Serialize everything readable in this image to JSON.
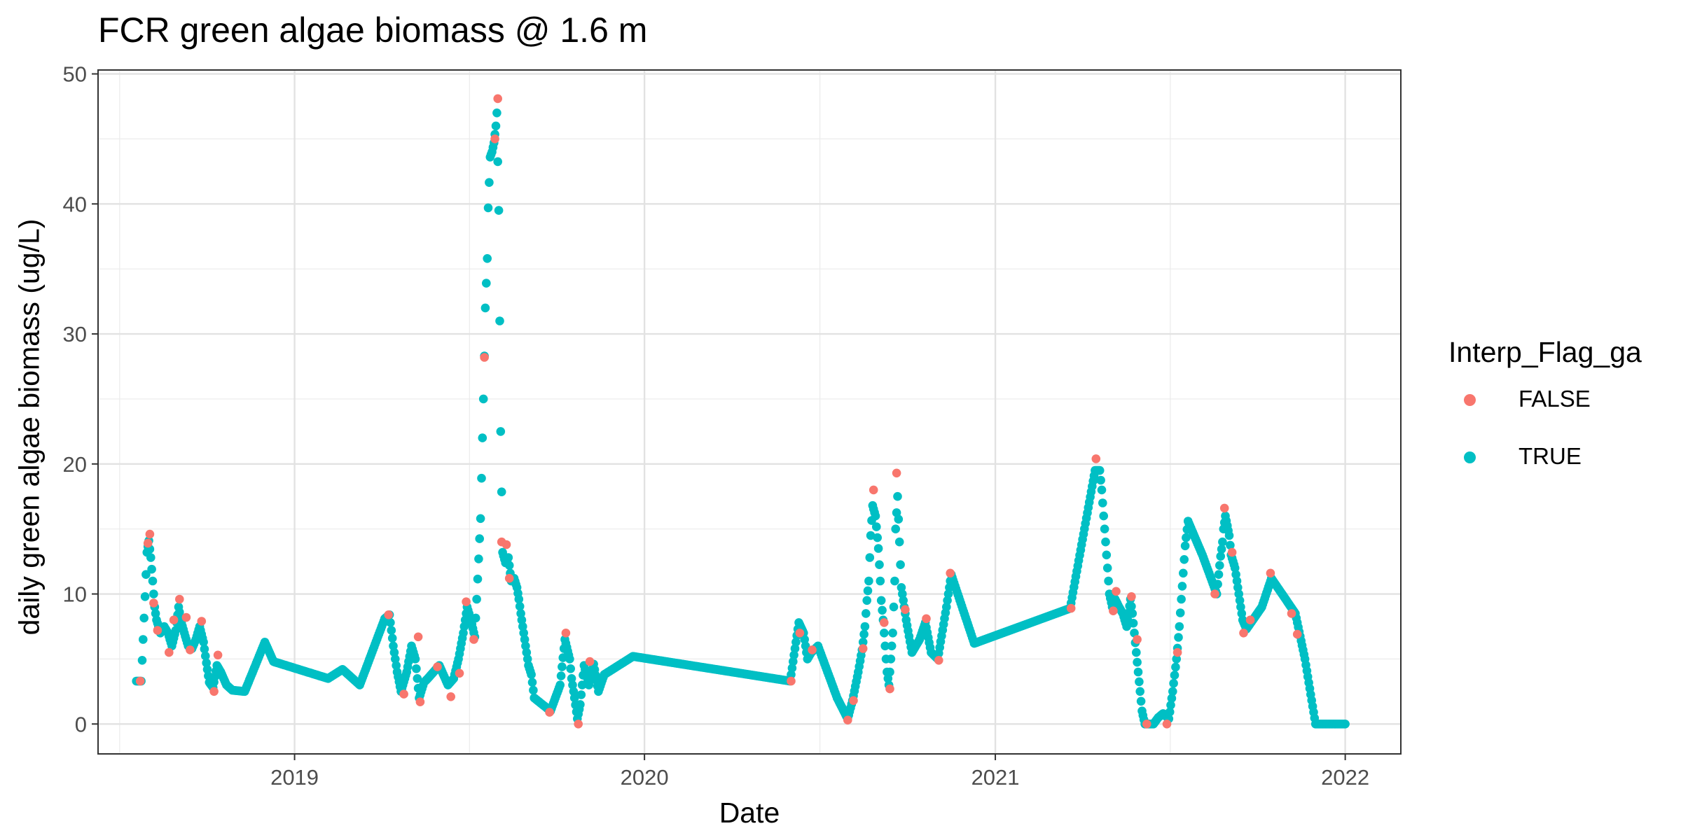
{
  "chart_data": {
    "type": "scatter",
    "title": "FCR green algae biomass @ 1.6 m",
    "xlabel": "Date",
    "ylabel": "daily green algae biomass (ug/L)",
    "xlim": [
      "2018-06-10",
      "2022-02-28"
    ],
    "ylim": [
      -2.3,
      50.3
    ],
    "x_ticks": [
      "2019-01-01",
      "2020-01-01",
      "2021-01-01",
      "2022-01-01"
    ],
    "x_tick_labels": [
      "2019",
      "2020",
      "2021",
      "2022"
    ],
    "y_ticks": [
      0,
      10,
      20,
      30,
      40,
      50
    ],
    "y_tick_labels": [
      "0",
      "10",
      "20",
      "30",
      "40",
      "50"
    ],
    "grid": true,
    "legend": {
      "title": "Interp_Flag_ga",
      "placement": "right",
      "entries": [
        {
          "label": "FALSE",
          "color": "#F8766D"
        },
        {
          "label": "TRUE",
          "color": "#00BFC4"
        }
      ]
    },
    "series": [
      {
        "name": "TRUE",
        "color": "#00BFC4",
        "anchors": [
          [
            "2018-07-20",
            3.3
          ],
          [
            "2018-07-25",
            3.3
          ],
          [
            "2018-07-27",
            6.5
          ],
          [
            "2018-07-29",
            9.8
          ],
          [
            "2018-07-31",
            13.2
          ],
          [
            "2018-08-02",
            14.1
          ],
          [
            "2018-08-04",
            12.8
          ],
          [
            "2018-08-06",
            11.0
          ],
          [
            "2018-08-08",
            9.0
          ],
          [
            "2018-08-10",
            8.0
          ],
          [
            "2018-08-14",
            7.0
          ],
          [
            "2018-08-18",
            7.5
          ],
          [
            "2018-08-22",
            7.0
          ],
          [
            "2018-08-26",
            6.0
          ],
          [
            "2018-08-30",
            7.2
          ],
          [
            "2018-09-02",
            9.0
          ],
          [
            "2018-09-05",
            7.8
          ],
          [
            "2018-09-08",
            7.0
          ],
          [
            "2018-09-12",
            6.0
          ],
          [
            "2018-09-16",
            5.8
          ],
          [
            "2018-09-20",
            6.5
          ],
          [
            "2018-09-24",
            7.5
          ],
          [
            "2018-09-28",
            6.3
          ],
          [
            "2018-10-01",
            4.7
          ],
          [
            "2018-10-04",
            3.2
          ],
          [
            "2018-10-08",
            2.8
          ],
          [
            "2018-10-12",
            4.5
          ],
          [
            "2018-10-16",
            4.0
          ],
          [
            "2018-10-22",
            3.0
          ],
          [
            "2018-10-28",
            2.6
          ],
          [
            "2018-11-10",
            2.5
          ],
          [
            "2018-12-01",
            6.3
          ],
          [
            "2018-12-10",
            4.8
          ],
          [
            "2019-02-05",
            3.5
          ],
          [
            "2019-02-20",
            4.2
          ],
          [
            "2019-03-10",
            3.0
          ],
          [
            "2019-04-05",
            8.1
          ],
          [
            "2019-04-10",
            8.4
          ],
          [
            "2019-04-14",
            6.0
          ],
          [
            "2019-04-18",
            4.0
          ],
          [
            "2019-04-22",
            2.5
          ],
          [
            "2019-04-28",
            4.0
          ],
          [
            "2019-05-03",
            6.0
          ],
          [
            "2019-05-07",
            5.0
          ],
          [
            "2019-05-11",
            2.0
          ],
          [
            "2019-05-16",
            3.2
          ],
          [
            "2019-05-20",
            3.5
          ],
          [
            "2019-06-01",
            4.5
          ],
          [
            "2019-06-10",
            3.0
          ],
          [
            "2019-06-16",
            3.5
          ],
          [
            "2019-06-21",
            5.0
          ],
          [
            "2019-06-26",
            7.0
          ],
          [
            "2019-06-30",
            9.0
          ],
          [
            "2019-07-04",
            8.0
          ],
          [
            "2019-07-08",
            6.7
          ],
          [
            "2019-07-10",
            9.6
          ],
          [
            "2019-07-12",
            12.7
          ],
          [
            "2019-07-14",
            15.8
          ],
          [
            "2019-07-15",
            18.9
          ],
          [
            "2019-07-16",
            22.0
          ],
          [
            "2019-07-17",
            25.0
          ],
          [
            "2019-07-18",
            28.3
          ],
          [
            "2019-07-19",
            32.0
          ],
          [
            "2019-07-21",
            35.8
          ],
          [
            "2019-07-22",
            39.7
          ],
          [
            "2019-07-24",
            43.6
          ],
          [
            "2019-07-26",
            44.0
          ],
          [
            "2019-07-28",
            44.7
          ],
          [
            "2019-07-30",
            46.0
          ],
          [
            "2019-07-31",
            47.0
          ],
          [
            "2019-08-02",
            39.5
          ],
          [
            "2019-08-03",
            31.0
          ],
          [
            "2019-08-04",
            22.5
          ],
          [
            "2019-08-06",
            13.2
          ],
          [
            "2019-08-09",
            12.4
          ],
          [
            "2019-08-12",
            12.8
          ],
          [
            "2019-08-15",
            11.0
          ],
          [
            "2019-08-18",
            11.2
          ],
          [
            "2019-08-21",
            10.5
          ],
          [
            "2019-08-23",
            9.6
          ],
          [
            "2019-08-25",
            8.5
          ],
          [
            "2019-08-27",
            7.5
          ],
          [
            "2019-08-29",
            6.5
          ],
          [
            "2019-08-31",
            5.5
          ],
          [
            "2019-09-02",
            4.5
          ],
          [
            "2019-09-05",
            3.8
          ],
          [
            "2019-09-08",
            2.0
          ],
          [
            "2019-09-25",
            1.0
          ],
          [
            "2019-10-05",
            3.0
          ],
          [
            "2019-10-10",
            6.5
          ],
          [
            "2019-10-15",
            5.0
          ],
          [
            "2019-10-17",
            3.5
          ],
          [
            "2019-10-20",
            2.0
          ],
          [
            "2019-10-23",
            0.4
          ],
          [
            "2019-10-26",
            1.5
          ],
          [
            "2019-10-30",
            4.5
          ],
          [
            "2019-11-04",
            3.0
          ],
          [
            "2019-11-09",
            4.6
          ],
          [
            "2019-11-14",
            2.5
          ],
          [
            "2019-11-20",
            3.8
          ],
          [
            "2019-12-20",
            5.2
          ],
          [
            "2020-06-01",
            3.3
          ],
          [
            "2020-06-10",
            7.8
          ],
          [
            "2020-06-15",
            7.0
          ],
          [
            "2020-06-19",
            5.0
          ],
          [
            "2020-06-23",
            5.5
          ],
          [
            "2020-06-30",
            6.0
          ],
          [
            "2020-07-20",
            2.0
          ],
          [
            "2020-07-31",
            0.4
          ],
          [
            "2020-08-05",
            1.8
          ],
          [
            "2020-08-11",
            4.0
          ],
          [
            "2020-08-15",
            5.7
          ],
          [
            "2020-08-18",
            7.5
          ],
          [
            "2020-08-20",
            9.5
          ],
          [
            "2020-08-22",
            11.0
          ],
          [
            "2020-08-23",
            12.8
          ],
          [
            "2020-08-24",
            14.5
          ],
          [
            "2020-08-26",
            16.8
          ],
          [
            "2020-08-29",
            16.0
          ],
          [
            "2020-09-01",
            13.5
          ],
          [
            "2020-09-03",
            11.0
          ],
          [
            "2020-09-04",
            9.5
          ],
          [
            "2020-09-06",
            8.0
          ],
          [
            "2020-09-08",
            6.0
          ],
          [
            "2020-09-10",
            4.0
          ],
          [
            "2020-09-12",
            3.0
          ],
          [
            "2020-09-14",
            5.0
          ],
          [
            "2020-09-16",
            7.0
          ],
          [
            "2020-09-18",
            11.0
          ],
          [
            "2020-09-19",
            15.0
          ],
          [
            "2020-09-21",
            17.5
          ],
          [
            "2020-09-23",
            14.0
          ],
          [
            "2020-09-25",
            10.5
          ],
          [
            "2020-09-30",
            8.0
          ],
          [
            "2020-10-06",
            5.5
          ],
          [
            "2020-10-14",
            6.5
          ],
          [
            "2020-10-20",
            7.8
          ],
          [
            "2020-10-26",
            5.5
          ],
          [
            "2020-11-02",
            5.0
          ],
          [
            "2020-11-11",
            9.0
          ],
          [
            "2020-11-16",
            11.5
          ],
          [
            "2020-12-10",
            6.2
          ],
          [
            "2021-03-20",
            8.9
          ],
          [
            "2021-04-15",
            19.5
          ],
          [
            "2021-04-20",
            19.5
          ],
          [
            "2021-04-22",
            18.0
          ],
          [
            "2021-04-24",
            16.0
          ],
          [
            "2021-04-26",
            14.0
          ],
          [
            "2021-04-28",
            12.0
          ],
          [
            "2021-04-30",
            10.0
          ],
          [
            "2021-05-03",
            9.0
          ],
          [
            "2021-05-06",
            9.6
          ],
          [
            "2021-05-10",
            9.0
          ],
          [
            "2021-05-14",
            8.5
          ],
          [
            "2021-05-18",
            7.5
          ],
          [
            "2021-05-22",
            9.6
          ],
          [
            "2021-05-24",
            8.5
          ],
          [
            "2021-05-26",
            7.0
          ],
          [
            "2021-05-28",
            5.5
          ],
          [
            "2021-05-30",
            4.0
          ],
          [
            "2021-06-01",
            2.5
          ],
          [
            "2021-06-03",
            1.0
          ],
          [
            "2021-06-06",
            0.0
          ],
          [
            "2021-06-15",
            0.0
          ],
          [
            "2021-06-20",
            0.5
          ],
          [
            "2021-06-25",
            0.8
          ],
          [
            "2021-07-01",
            0.4
          ],
          [
            "2021-07-05",
            2.5
          ],
          [
            "2021-07-09",
            5.0
          ],
          [
            "2021-07-12",
            7.5
          ],
          [
            "2021-07-14",
            9.6
          ],
          [
            "2021-07-16",
            11.6
          ],
          [
            "2021-07-18",
            13.7
          ],
          [
            "2021-07-21",
            15.6
          ],
          [
            "2021-08-05",
            13.0
          ],
          [
            "2021-08-20",
            10.0
          ],
          [
            "2021-08-22",
            11.5
          ],
          [
            "2021-08-24",
            12.9
          ],
          [
            "2021-08-26",
            14.0
          ],
          [
            "2021-08-27",
            15.0
          ],
          [
            "2021-08-29",
            16.0
          ],
          [
            "2021-09-02",
            14.5
          ],
          [
            "2021-09-04",
            13.0
          ],
          [
            "2021-09-08",
            12.0
          ],
          [
            "2021-09-10",
            11.0
          ],
          [
            "2021-09-12",
            10.0
          ],
          [
            "2021-09-14",
            9.0
          ],
          [
            "2021-09-16",
            8.0
          ],
          [
            "2021-09-20",
            7.3
          ],
          [
            "2021-10-06",
            9.0
          ],
          [
            "2021-10-16",
            11.2
          ],
          [
            "2021-11-10",
            8.5
          ],
          [
            "2021-11-20",
            5.0
          ],
          [
            "2021-12-01",
            0.0
          ],
          [
            "2022-01-01",
            0.0
          ]
        ]
      },
      {
        "name": "FALSE",
        "color": "#F8766D",
        "points": [
          [
            "2018-07-24",
            3.3
          ],
          [
            "2018-08-01",
            13.9
          ],
          [
            "2018-08-03",
            14.6
          ],
          [
            "2018-08-07",
            9.3
          ],
          [
            "2018-08-11",
            7.2
          ],
          [
            "2018-08-23",
            5.5
          ],
          [
            "2018-08-28",
            8.0
          ],
          [
            "2018-09-03",
            9.6
          ],
          [
            "2018-09-10",
            8.2
          ],
          [
            "2018-09-14",
            5.7
          ],
          [
            "2018-09-26",
            7.9
          ],
          [
            "2018-10-09",
            2.5
          ],
          [
            "2018-10-13",
            5.3
          ],
          [
            "2019-04-09",
            8.4
          ],
          [
            "2019-04-25",
            2.3
          ],
          [
            "2019-05-10",
            6.7
          ],
          [
            "2019-05-12",
            1.7
          ],
          [
            "2019-05-30",
            4.4
          ],
          [
            "2019-06-13",
            2.1
          ],
          [
            "2019-06-22",
            3.9
          ],
          [
            "2019-06-29",
            9.4
          ],
          [
            "2019-07-07",
            6.5
          ],
          [
            "2019-07-18",
            28.2
          ],
          [
            "2019-07-29",
            45.0
          ],
          [
            "2019-08-01",
            48.1
          ],
          [
            "2019-08-05",
            14.0
          ],
          [
            "2019-08-10",
            13.8
          ],
          [
            "2019-08-13",
            11.2
          ],
          [
            "2019-09-24",
            0.9
          ],
          [
            "2019-10-11",
            7.0
          ],
          [
            "2019-10-24",
            0.0
          ],
          [
            "2019-11-05",
            4.8
          ],
          [
            "2020-06-02",
            3.3
          ],
          [
            "2020-06-11",
            7.0
          ],
          [
            "2020-06-24",
            5.7
          ],
          [
            "2020-07-31",
            0.3
          ],
          [
            "2020-08-06",
            1.8
          ],
          [
            "2020-08-16",
            5.8
          ],
          [
            "2020-08-27",
            18.0
          ],
          [
            "2020-09-07",
            7.8
          ],
          [
            "2020-09-13",
            2.7
          ],
          [
            "2020-09-20",
            19.3
          ],
          [
            "2020-09-29",
            8.8
          ],
          [
            "2020-10-21",
            8.1
          ],
          [
            "2020-11-03",
            4.9
          ],
          [
            "2020-11-15",
            11.6
          ],
          [
            "2021-03-21",
            8.9
          ],
          [
            "2021-04-16",
            20.4
          ],
          [
            "2021-05-04",
            8.7
          ],
          [
            "2021-05-07",
            10.2
          ],
          [
            "2021-05-23",
            9.8
          ],
          [
            "2021-05-29",
            6.5
          ],
          [
            "2021-06-08",
            0.0
          ],
          [
            "2021-06-29",
            0.0
          ],
          [
            "2021-07-10",
            5.5
          ],
          [
            "2021-08-18",
            10.0
          ],
          [
            "2021-08-28",
            16.6
          ],
          [
            "2021-09-05",
            13.2
          ],
          [
            "2021-09-17",
            7.0
          ],
          [
            "2021-09-24",
            8.0
          ],
          [
            "2021-10-15",
            11.6
          ],
          [
            "2021-11-06",
            8.5
          ],
          [
            "2021-11-12",
            6.9
          ]
        ]
      }
    ]
  }
}
